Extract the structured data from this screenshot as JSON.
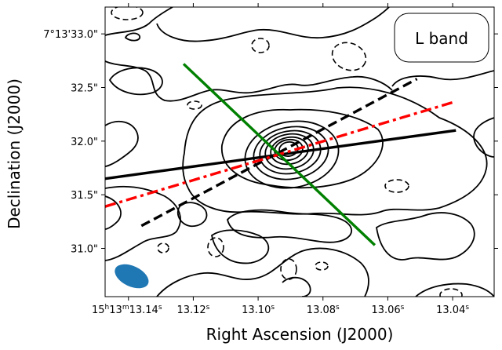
{
  "chart_data": {
    "type": "contour",
    "title": "",
    "band_label": "L band",
    "xlabel": "Right Ascension (J2000)",
    "ylabel": "Declination (J2000)",
    "x_ticks": [
      {
        "value": 13.14,
        "label_h": "15",
        "label_m": "13",
        "label_s": "13.14",
        "label_full": "15h13m13.14s"
      },
      {
        "value": 13.12,
        "label": "13.12",
        "label_sup": "s"
      },
      {
        "value": 13.1,
        "label": "13.10",
        "label_sup": "s"
      },
      {
        "value": 13.08,
        "label": "13.08",
        "label_sup": "s"
      },
      {
        "value": 13.06,
        "label": "13.06",
        "label_sup": "s"
      },
      {
        "value": 13.04,
        "label": "13.04",
        "label_sup": "s"
      }
    ],
    "y_ticks": [
      {
        "value": 33.0,
        "label": "7°13'33.0\""
      },
      {
        "value": 32.5,
        "label": "32.5\""
      },
      {
        "value": 32.0,
        "label": "32.0\""
      },
      {
        "value": 31.5,
        "label": "31.5\""
      },
      {
        "value": 31.0,
        "label": "31.0\""
      }
    ],
    "xlim": [
      13.1472,
      13.0272
    ],
    "ylim": [
      30.55,
      33.25
    ],
    "peak": {
      "ra": 13.097,
      "dec": 31.93
    },
    "lines": [
      {
        "name": "black solid",
        "color": "#000000",
        "style": "solid",
        "x": [
          13.1472,
          13.039
        ],
        "y": [
          31.65,
          32.1
        ]
      },
      {
        "name": "black dashed",
        "color": "#000000",
        "style": "dashed",
        "x": [
          13.136,
          13.051
        ],
        "y": [
          31.21,
          32.58
        ]
      },
      {
        "name": "red dash-dot",
        "color": "#ff0000",
        "style": "dashdot",
        "x": [
          13.1472,
          13.039
        ],
        "y": [
          31.39,
          32.37
        ]
      },
      {
        "name": "green solid",
        "color": "#008000",
        "style": "solid",
        "x": [
          13.123,
          13.064
        ],
        "y": [
          32.72,
          31.03
        ]
      }
    ],
    "beam": {
      "ra": 13.139,
      "dec": 30.74,
      "color": "#1f77b4"
    },
    "colors": {
      "contour": "#000000",
      "beam": "#1f77b4",
      "green": "#008000",
      "red": "#ff0000"
    }
  }
}
